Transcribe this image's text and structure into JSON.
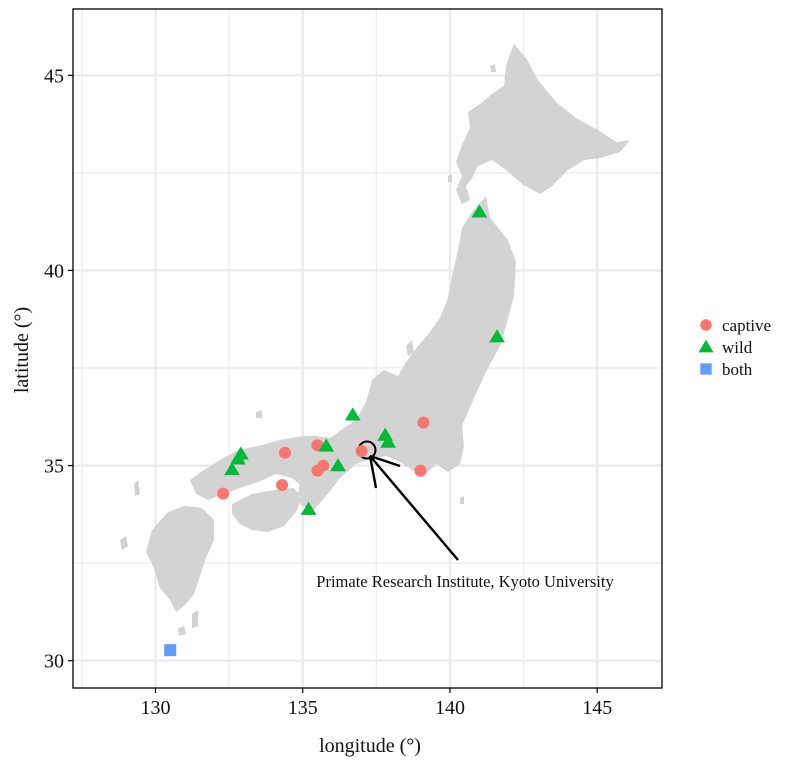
{
  "chart_data": {
    "type": "scatter",
    "title": "",
    "xlabel": "longitude (°)",
    "ylabel": "latitude (°)",
    "xlim": [
      127.2,
      147.2
    ],
    "ylim": [
      29.3,
      46.7
    ],
    "x_ticks": [
      130,
      135,
      140,
      145
    ],
    "y_ticks": [
      30,
      35,
      40,
      45
    ],
    "grid": true,
    "legend_position": "right",
    "colors": {
      "captive": "#f8766d",
      "wild": "#00ba38",
      "both": "#619cff",
      "land": "#d3d3d3",
      "grid": "#ebebeb"
    },
    "series": [
      {
        "name": "captive",
        "marker": "circle",
        "points": [
          {
            "lon": 132.3,
            "lat": 34.28
          },
          {
            "lon": 134.3,
            "lat": 34.5
          },
          {
            "lon": 134.4,
            "lat": 35.33
          },
          {
            "lon": 135.5,
            "lat": 35.52
          },
          {
            "lon": 135.5,
            "lat": 34.87
          },
          {
            "lon": 135.7,
            "lat": 35.0
          },
          {
            "lon": 137.0,
            "lat": 35.37
          },
          {
            "lon": 139.0,
            "lat": 34.87
          },
          {
            "lon": 139.1,
            "lat": 36.1
          }
        ]
      },
      {
        "name": "wild",
        "marker": "triangle",
        "points": [
          {
            "lon": 132.6,
            "lat": 34.9
          },
          {
            "lon": 132.8,
            "lat": 35.17
          },
          {
            "lon": 132.9,
            "lat": 35.3
          },
          {
            "lon": 135.2,
            "lat": 33.88
          },
          {
            "lon": 135.8,
            "lat": 35.5
          },
          {
            "lon": 136.2,
            "lat": 35.0
          },
          {
            "lon": 136.7,
            "lat": 36.3
          },
          {
            "lon": 137.8,
            "lat": 35.78
          },
          {
            "lon": 137.9,
            "lat": 35.6
          },
          {
            "lon": 141.0,
            "lat": 41.5
          },
          {
            "lon": 141.6,
            "lat": 38.3
          }
        ]
      },
      {
        "name": "both",
        "marker": "square",
        "points": [
          {
            "lon": 130.5,
            "lat": 30.27
          }
        ]
      }
    ],
    "annotation": {
      "text": "Primate Research Institute, Kyoto University",
      "target": {
        "lon": 137.0,
        "lat": 35.37
      }
    }
  }
}
